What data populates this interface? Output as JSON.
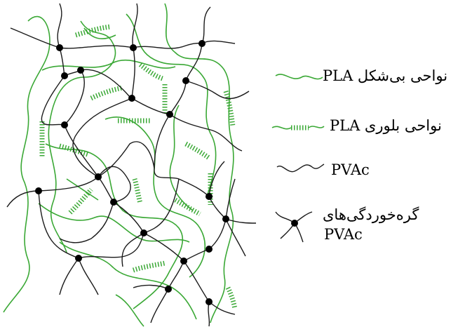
{
  "legend": [
    {
      "key": "amorphous",
      "label": "نواحی بی‌شکل PLA"
    },
    {
      "key": "crystalline",
      "label": "نواحی بلوری PLA"
    },
    {
      "key": "pvac_chain",
      "label": "PVAc"
    },
    {
      "key": "entanglement",
      "label_line1": "گره‌خوردگی‌های",
      "label_line2": "PVAc"
    }
  ],
  "colors": {
    "pla": "#3aa835",
    "pvac": "#1a1a1a",
    "node": "#000000"
  }
}
